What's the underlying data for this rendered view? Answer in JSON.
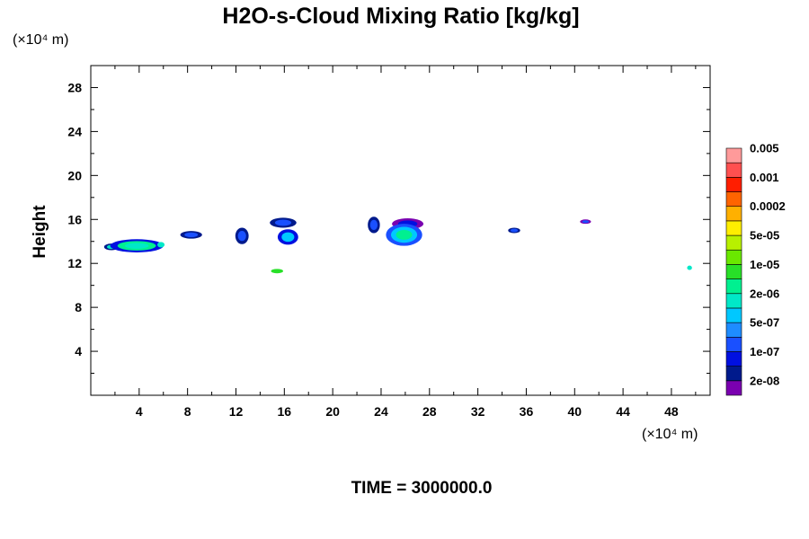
{
  "chart_data": {
    "type": "heatmap",
    "title": "H2O-s-Cloud Mixing Ratio [kg/kg]",
    "xlabel": "",
    "ylabel": "Height",
    "x_unit_label": "(×10⁴ m)",
    "y_unit_label": "(×10⁴ m)",
    "footer": "TIME = 3000000.0",
    "xlim": [
      0,
      51.2
    ],
    "ylim": [
      0,
      30
    ],
    "x_ticks": [
      4,
      8,
      12,
      16,
      20,
      24,
      28,
      32,
      36,
      40,
      44,
      48
    ],
    "y_ticks": [
      4,
      8,
      12,
      16,
      20,
      24,
      28
    ],
    "grid": false,
    "colorbar": {
      "colors": [
        "#7a00b0",
        "#001a8c",
        "#0010e0",
        "#1a50ff",
        "#1e8cff",
        "#00c8ff",
        "#00e8c8",
        "#00f090",
        "#28e028",
        "#6ae800",
        "#b8f000",
        "#ffee00",
        "#ffb000",
        "#ff6400",
        "#ff1e00",
        "#ff5050",
        "#ff9a9a"
      ],
      "labels": [
        "2e-08",
        "1e-07",
        "5e-07",
        "2e-06",
        "1e-05",
        "5e-05",
        "0.0002",
        "0.001",
        "0.005"
      ]
    },
    "blobs": [
      {
        "x": 1.7,
        "y": 13.5,
        "rx": 0.6,
        "ry": 0.3,
        "levels": [
          1,
          6
        ]
      },
      {
        "x": 3.8,
        "y": 13.6,
        "rx": 2.2,
        "ry": 0.6,
        "levels": [
          2,
          7,
          6
        ]
      },
      {
        "x": 5.8,
        "y": 13.7,
        "rx": 0.3,
        "ry": 0.25,
        "levels": [
          6
        ]
      },
      {
        "x": 8.3,
        "y": 14.6,
        "rx": 0.9,
        "ry": 0.35,
        "levels": [
          1,
          3
        ]
      },
      {
        "x": 12.5,
        "y": 14.5,
        "rx": 0.55,
        "ry": 0.75,
        "levels": [
          1,
          3
        ]
      },
      {
        "x": 15.9,
        "y": 15.7,
        "rx": 1.1,
        "ry": 0.45,
        "levels": [
          1,
          3
        ]
      },
      {
        "x": 16.3,
        "y": 14.4,
        "rx": 0.85,
        "ry": 0.7,
        "levels": [
          2,
          5
        ]
      },
      {
        "x": 15.4,
        "y": 11.3,
        "rx": 0.5,
        "ry": 0.2,
        "levels": [
          8
        ]
      },
      {
        "x": 23.4,
        "y": 15.5,
        "rx": 0.5,
        "ry": 0.75,
        "levels": [
          1,
          3
        ]
      },
      {
        "x": 26.2,
        "y": 15.6,
        "rx": 1.3,
        "ry": 0.5,
        "levels": [
          0,
          2
        ]
      },
      {
        "x": 25.9,
        "y": 14.6,
        "rx": 1.5,
        "ry": 1.0,
        "levels": [
          3,
          5,
          7
        ]
      },
      {
        "x": 35.0,
        "y": 15.0,
        "rx": 0.5,
        "ry": 0.25,
        "levels": [
          1,
          3
        ]
      },
      {
        "x": 40.9,
        "y": 15.8,
        "rx": 0.45,
        "ry": 0.2,
        "levels": [
          0,
          3
        ]
      },
      {
        "x": 49.5,
        "y": 11.6,
        "rx": 0.2,
        "ry": 0.2,
        "levels": [
          6
        ]
      }
    ]
  }
}
